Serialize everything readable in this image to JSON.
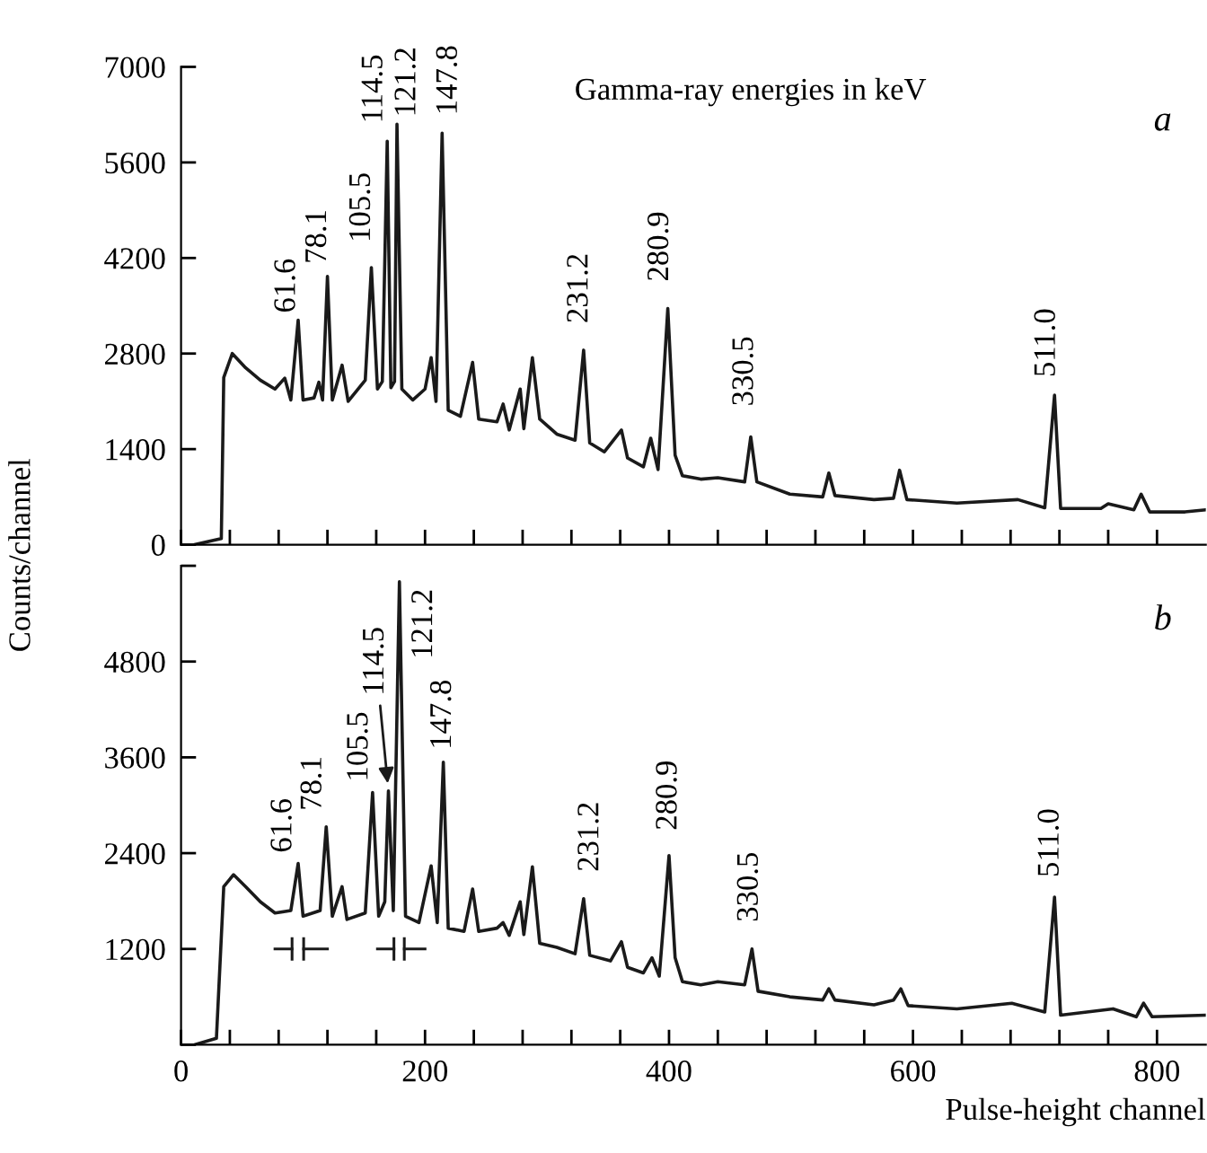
{
  "chart_data": [
    {
      "type": "line",
      "title": "Gamma-ray energies in keV",
      "ylabel": "Counts/channel",
      "tick_labels": "y",
      "xlim": [
        0,
        840
      ],
      "ylim": [
        0,
        7000
      ],
      "xticks": [
        0,
        {
          "value": 40,
          "label": null
        },
        {
          "value": 80,
          "label": null
        },
        {
          "value": 120,
          "label": null
        },
        {
          "value": 160,
          "label": null
        },
        {
          "value": 200,
          "label": null
        },
        {
          "value": 240,
          "label": null
        },
        {
          "value": 280,
          "label": null
        },
        {
          "value": 320,
          "label": null
        },
        {
          "value": 360,
          "label": null
        },
        {
          "value": 400,
          "label": null
        },
        {
          "value": 440,
          "label": null
        },
        {
          "value": 480,
          "label": null
        },
        {
          "value": 520,
          "label": null
        },
        {
          "value": 560,
          "label": null
        },
        {
          "value": 600,
          "label": null
        },
        {
          "value": 640,
          "label": null
        },
        {
          "value": 680,
          "label": null
        },
        {
          "value": 720,
          "label": null
        },
        {
          "value": 760,
          "label": null
        },
        {
          "value": 800,
          "label": null
        }
      ],
      "yticks": [
        0,
        1400,
        2800,
        4200,
        5600,
        7000
      ],
      "series": [
        {
          "color": "#1a1a1a",
          "x": [
            11,
            33,
            35,
            42,
            53,
            65,
            77,
            85,
            90,
            96,
            100,
            109,
            113,
            116,
            120,
            124,
            132,
            137,
            151,
            156,
            161,
            165,
            169,
            172,
            175,
            177,
            181,
            190,
            200,
            205,
            209,
            214,
            219,
            229,
            239,
            244,
            259,
            264,
            269,
            278,
            281,
            288,
            294,
            308,
            323,
            330,
            335,
            347,
            361,
            366,
            379,
            385,
            391,
            399,
            405,
            411,
            426,
            440,
            462,
            467,
            472,
            499,
            526,
            531,
            536,
            568,
            584,
            589,
            595,
            636,
            686,
            708,
            716,
            721,
            754,
            760,
            781,
            787,
            794,
            823,
            840
          ],
          "values": [
            0,
            90,
            2450,
            2800,
            2590,
            2410,
            2280,
            2440,
            2120,
            3290,
            2120,
            2150,
            2380,
            2120,
            3930,
            2120,
            2630,
            2100,
            2410,
            4060,
            2280,
            2390,
            5910,
            2300,
            2390,
            6160,
            2280,
            2120,
            2280,
            2740,
            2100,
            6030,
            1970,
            1880,
            2670,
            1840,
            1800,
            2060,
            1680,
            2280,
            1700,
            2740,
            1840,
            1620,
            1530,
            2850,
            1490,
            1360,
            1680,
            1270,
            1140,
            1560,
            1100,
            3460,
            1310,
            1010,
            960,
            980,
            920,
            1580,
            920,
            740,
            700,
            1050,
            720,
            660,
            680,
            1090,
            660,
            610,
            660,
            540,
            2190,
            530,
            530,
            600,
            510,
            740,
            480,
            480,
            510
          ]
        }
      ],
      "annotations": [
        "a",
        {
          "text": "61.6",
          "x": 96,
          "y": 3290
        },
        {
          "text": "78.1",
          "x": 120,
          "y": 3930
        },
        {
          "text": "105.5",
          "x": 156,
          "y": 4060
        },
        {
          "text": "114.5",
          "x": 169,
          "y": 5910
        },
        {
          "text": "121.2",
          "x": 177,
          "y": 6160
        },
        {
          "text": "147.8",
          "x": 214,
          "y": 6030
        },
        {
          "text": "231.2",
          "x": 330,
          "y": 2850
        },
        {
          "text": "280.9",
          "x": 399,
          "y": 3460
        },
        {
          "text": "330.5",
          "x": 467,
          "y": 1580
        },
        {
          "text": "511.0",
          "x": 716,
          "y": 2190
        }
      ]
    },
    {
      "type": "line",
      "xlabel": "Pulse-height channel",
      "xlim": [
        0,
        840
      ],
      "ylim": [
        0,
        6000
      ],
      "xticks": [
        0,
        {
          "value": 40,
          "label": null
        },
        {
          "value": 80,
          "label": null
        },
        {
          "value": 120,
          "label": null
        },
        {
          "value": 160,
          "label": null
        },
        200,
        {
          "value": 240,
          "label": null
        },
        {
          "value": 280,
          "label": null
        },
        {
          "value": 320,
          "label": null
        },
        {
          "value": 360,
          "label": null
        },
        400,
        {
          "value": 440,
          "label": null
        },
        {
          "value": 480,
          "label": null
        },
        {
          "value": 520,
          "label": null
        },
        {
          "value": 560,
          "label": null
        },
        600,
        {
          "value": 640,
          "label": null
        },
        {
          "value": 680,
          "label": null
        },
        {
          "value": 720,
          "label": null
        },
        {
          "value": 760,
          "label": null
        },
        800
      ],
      "yticks": [
        {
          "value": 0,
          "label": null
        },
        1200,
        2400,
        3600,
        4800,
        {
          "value": 6000,
          "label": null
        }
      ],
      "series": [
        {
          "color": "#1a1a1a",
          "x": [
            11,
            29,
            35,
            43,
            53,
            65,
            77,
            90,
            96,
            100,
            114,
            119,
            124,
            132,
            136,
            151,
            157,
            162,
            167,
            170,
            174,
            179,
            184,
            195,
            205,
            210,
            215,
            219,
            232,
            239,
            244,
            259,
            264,
            269,
            278,
            281,
            288,
            294,
            308,
            323,
            330,
            335,
            352,
            361,
            366,
            379,
            386,
            392,
            400,
            405,
            411,
            426,
            440,
            462,
            468,
            473,
            499,
            526,
            531,
            536,
            568,
            584,
            590,
            596,
            636,
            681,
            708,
            716,
            721,
            764,
            783,
            789,
            796,
            840
          ],
          "values": [
            0,
            80,
            1980,
            2130,
            1980,
            1790,
            1650,
            1680,
            2270,
            1610,
            1680,
            2730,
            1610,
            1980,
            1570,
            1650,
            3160,
            1610,
            1790,
            3180,
            1680,
            5800,
            1610,
            1530,
            2240,
            1530,
            3540,
            1460,
            1420,
            1950,
            1420,
            1460,
            1530,
            1370,
            1790,
            1380,
            2230,
            1270,
            1220,
            1140,
            1830,
            1120,
            1050,
            1290,
            970,
            900,
            1090,
            860,
            2370,
            1090,
            790,
            750,
            790,
            750,
            1200,
            670,
            600,
            560,
            700,
            560,
            500,
            560,
            700,
            490,
            450,
            520,
            410,
            1850,
            370,
            450,
            350,
            520,
            350,
            370
          ]
        }
      ],
      "annotations": [
        "b",
        {
          "text": "61.6",
          "x": 96,
          "y": 2270
        },
        {
          "text": "78.1",
          "x": 119,
          "y": 2730
        },
        {
          "text": "105.5",
          "x": 157,
          "y": 3160
        },
        {
          "text": "114.5",
          "x": 170,
          "y": 3180
        },
        {
          "text": "121.2",
          "x": 179,
          "y": 5800
        },
        {
          "text": "147.8",
          "x": 215,
          "y": 3540
        },
        {
          "text": "231.2",
          "x": 330,
          "y": 1830
        },
        {
          "text": "280.9",
          "x": 400,
          "y": 2370
        },
        {
          "text": "330.5",
          "x": 468,
          "y": 1200
        },
        {
          "text": "511.0",
          "x": 716,
          "y": 1850
        }
      ]
    }
  ]
}
